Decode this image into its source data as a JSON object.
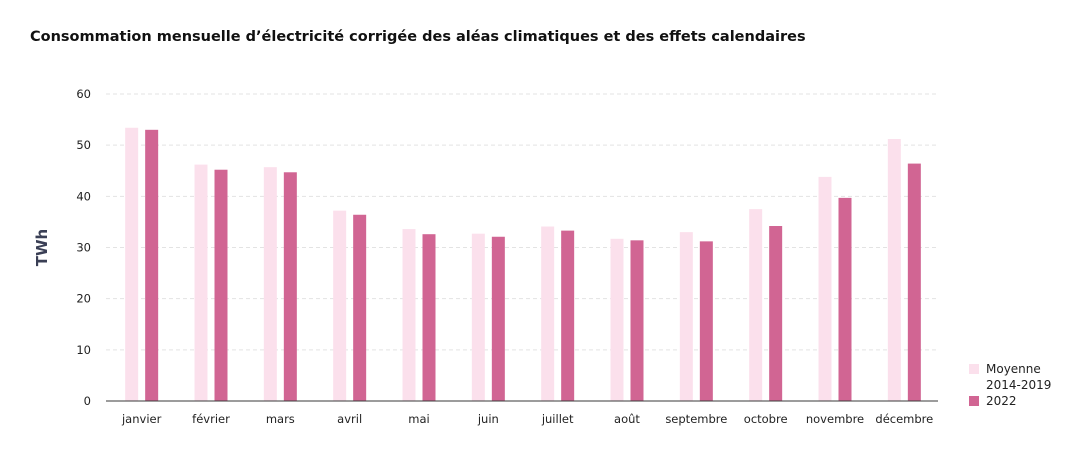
{
  "chart_data": {
    "type": "bar",
    "title": "Consommation mensuelle d’électricité corrigée des aléas climatiques et des effets calendaires",
    "ylabel": "TWh",
    "xlabel": "",
    "ylim": [
      0,
      60
    ],
    "yticks": [
      0,
      10,
      20,
      30,
      40,
      50,
      60
    ],
    "grid": "horizontal-dashed",
    "legend_position": "bottom-right",
    "categories": [
      "janvier",
      "février",
      "mars",
      "avril",
      "mai",
      "juin",
      "juillet",
      "août",
      "septembre",
      "octobre",
      "novembre",
      "décembre"
    ],
    "series": [
      {
        "name": "Moyenne 2014-2019",
        "legend_lines": [
          "Moyenne",
          "2014-2019"
        ],
        "color": "#fbe0ec",
        "values": [
          53.4,
          46.2,
          45.7,
          37.2,
          33.6,
          32.7,
          34.1,
          31.7,
          33.0,
          37.5,
          43.8,
          51.2
        ]
      },
      {
        "name": "2022",
        "legend_lines": [
          "2022"
        ],
        "color": "#d16593",
        "values": [
          53.0,
          45.2,
          44.7,
          36.4,
          32.6,
          32.1,
          33.3,
          31.4,
          31.2,
          34.2,
          39.7,
          46.4
        ]
      }
    ]
  }
}
